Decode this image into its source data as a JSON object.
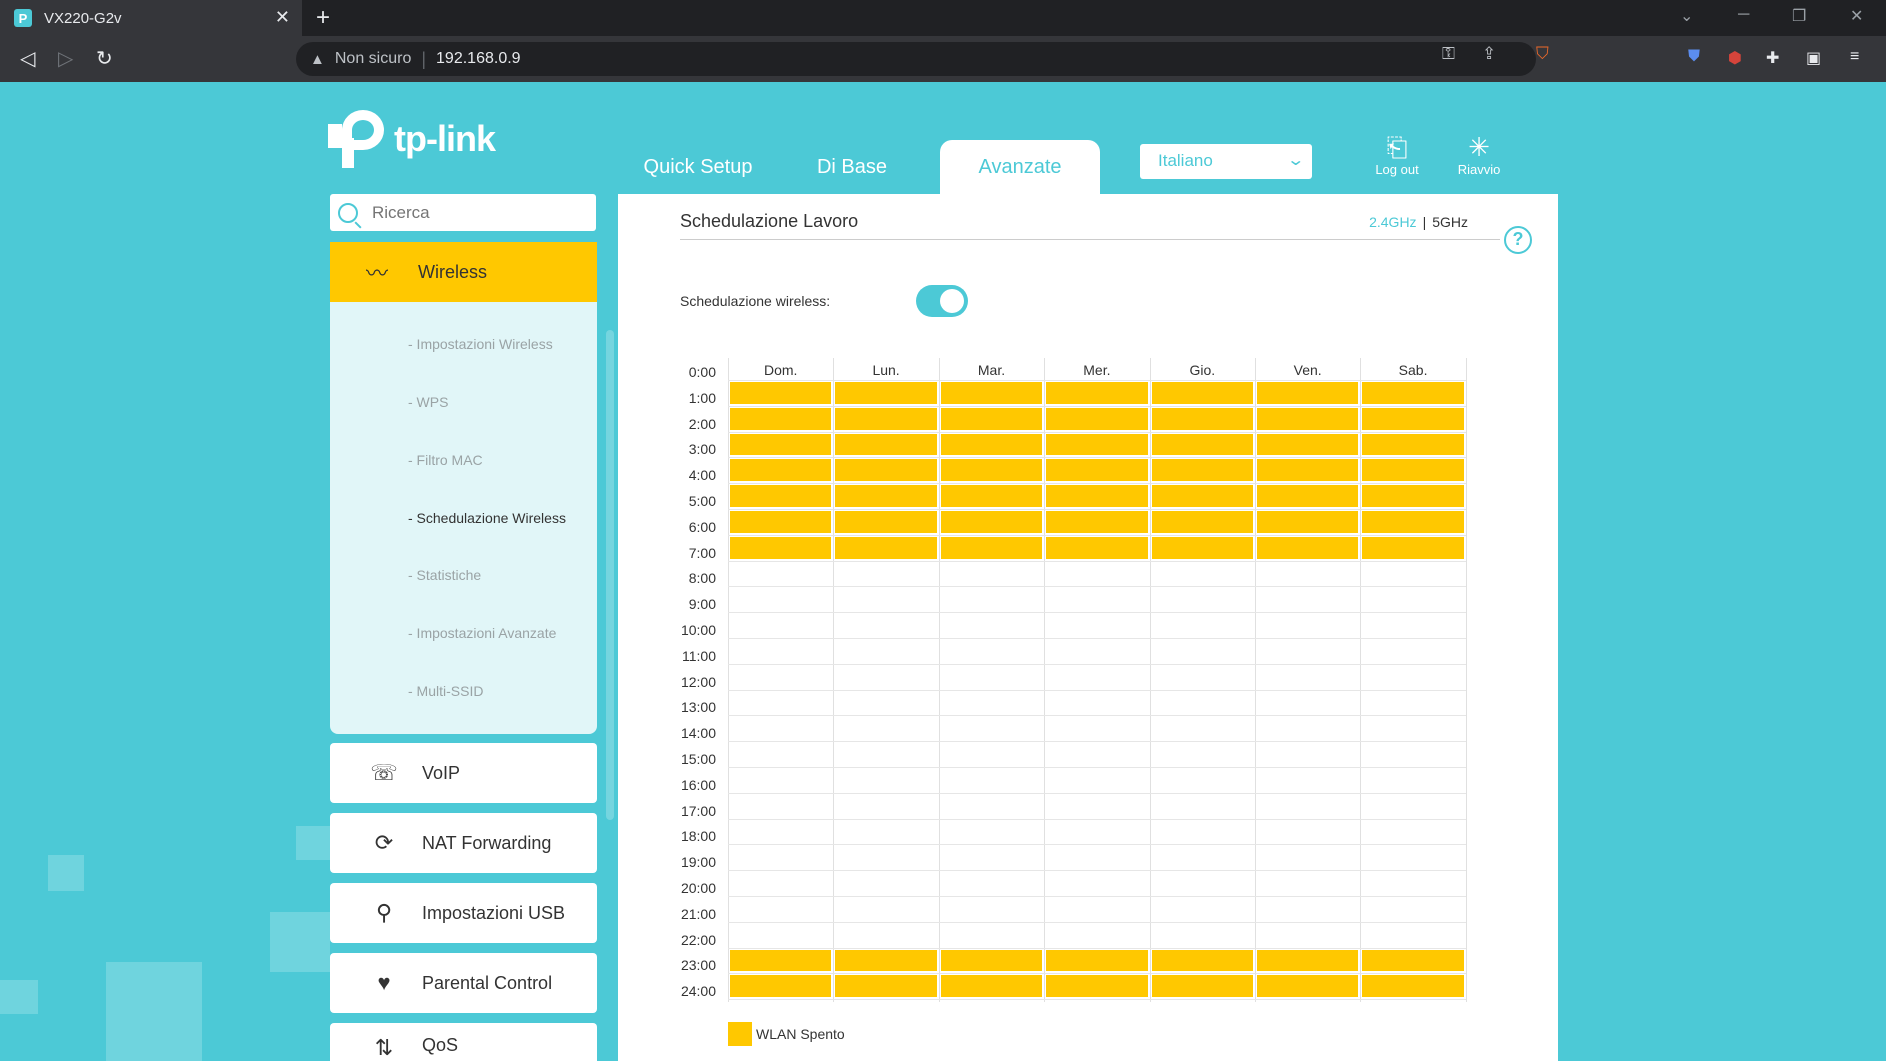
{
  "browser": {
    "tab_title": "VX220-G2v",
    "security_text": "Non sicuro",
    "url": "192.168.0.9"
  },
  "header": {
    "logo_text": "tp-link",
    "nav": [
      "Quick Setup",
      "Di Base",
      "Avanzate"
    ],
    "active_nav": "Avanzate",
    "language": "Italiano",
    "logout_label": "Log out",
    "reboot_label": "Riavvio"
  },
  "sidebar": {
    "search_placeholder": "Ricerca",
    "wireless_label": "Wireless",
    "wireless_items": [
      "- Impostazioni Wireless",
      "- WPS",
      "- Filtro MAC",
      "- Schedulazione Wireless",
      "- Statistiche",
      "- Impostazioni Avanzate",
      "- Multi-SSID"
    ],
    "active_item": "- Schedulazione Wireless",
    "menu": [
      "VoIP",
      "NAT Forwarding",
      "Impostazioni USB",
      "Parental Control",
      "QoS"
    ]
  },
  "content": {
    "title": "Schedulazione Lavoro",
    "band_24": "2.4GHz",
    "band_sep": "|",
    "band_5": "5GHz",
    "help": "?",
    "schedule_label": "Schedulazione wireless:",
    "schedule_enabled": true,
    "days": [
      "Dom.",
      "Lun.",
      "Mar.",
      "Mer.",
      "Gio.",
      "Ven.",
      "Sab."
    ],
    "hours": [
      "0:00",
      "1:00",
      "2:00",
      "3:00",
      "4:00",
      "5:00",
      "6:00",
      "7:00",
      "8:00",
      "9:00",
      "10:00",
      "11:00",
      "12:00",
      "13:00",
      "14:00",
      "15:00",
      "16:00",
      "17:00",
      "18:00",
      "19:00",
      "20:00",
      "21:00",
      "22:00",
      "23:00",
      "24:00"
    ],
    "off_hours": [
      0,
      1,
      2,
      3,
      4,
      5,
      6,
      22,
      23
    ],
    "legend_label": "WLAN Spento",
    "off_color": "#ffc800"
  },
  "colors": {
    "brand": "#4cc9d6",
    "accent": "#ffc800"
  }
}
